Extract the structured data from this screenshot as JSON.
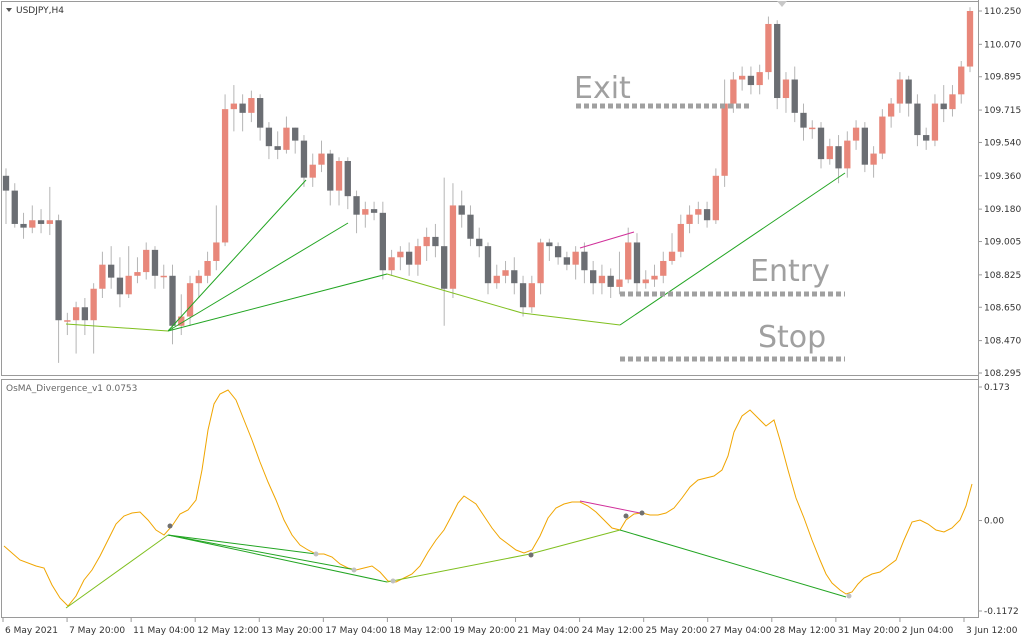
{
  "window": {
    "symbol_label": "USDJPY,H4",
    "indicator_label": "OsMA_Divergence_v1 0.0753"
  },
  "colors": {
    "bull": "#e8877a",
    "bear": "#6b6e73",
    "osma": "#f0a500",
    "trend_green": "#22a522",
    "trend_yellowgreen": "#7fbf1f",
    "divergence_magenta": "#d0309a",
    "annotation_gray": "#a0a0a0",
    "grid_border": "#9a9a9a"
  },
  "annotations": {
    "exit": "Exit",
    "entry": "Entry",
    "stop": "Stop"
  },
  "chart_data": [
    {
      "type": "candlestick",
      "title": "USDJPY,H4",
      "y_axis_ticks": [
        "110.250",
        "110.070",
        "109.895",
        "109.715",
        "109.540",
        "109.360",
        "109.180",
        "109.005",
        "108.825",
        "108.650",
        "108.470",
        "108.295"
      ],
      "ylim": [
        108.27,
        110.28
      ],
      "candles": [
        [
          109.36,
          109.28,
          109.4,
          109.1
        ],
        [
          109.28,
          109.1,
          109.32,
          109.08
        ],
        [
          109.1,
          109.08,
          109.16,
          109.02
        ],
        [
          109.08,
          109.12,
          109.2,
          109.05
        ],
        [
          109.12,
          109.1,
          109.18,
          109.05
        ],
        [
          109.1,
          109.12,
          109.3,
          109.04
        ],
        [
          109.12,
          108.58,
          109.15,
          108.35
        ],
        [
          108.58,
          108.58,
          108.62,
          108.5
        ],
        [
          108.58,
          108.65,
          108.68,
          108.4
        ],
        [
          108.65,
          108.58,
          108.7,
          108.5
        ],
        [
          108.58,
          108.75,
          108.78,
          108.4
        ],
        [
          108.75,
          108.88,
          108.95,
          108.7
        ],
        [
          108.88,
          108.81,
          108.98,
          108.75
        ],
        [
          108.81,
          108.72,
          108.92,
          108.65
        ],
        [
          108.72,
          108.82,
          108.98,
          108.7
        ],
        [
          108.82,
          108.84,
          108.92,
          108.78
        ],
        [
          108.84,
          108.96,
          109.0,
          108.8
        ],
        [
          108.96,
          108.82,
          108.98,
          108.75
        ],
        [
          108.82,
          108.82,
          108.88,
          108.75
        ],
        [
          108.82,
          108.55,
          108.88,
          108.45
        ],
        [
          108.55,
          108.6,
          108.72,
          108.5
        ],
        [
          108.6,
          108.78,
          108.82,
          108.55
        ],
        [
          108.78,
          108.82,
          108.85,
          108.7
        ],
        [
          108.82,
          108.9,
          108.95,
          108.78
        ],
        [
          108.9,
          109.0,
          109.2,
          108.85
        ],
        [
          109.0,
          109.72,
          109.8,
          108.98
        ],
        [
          109.72,
          109.75,
          109.85,
          109.6
        ],
        [
          109.75,
          109.7,
          109.8,
          109.6
        ],
        [
          109.7,
          109.78,
          109.82,
          109.65
        ],
        [
          109.78,
          109.62,
          109.8,
          109.55
        ],
        [
          109.62,
          109.52,
          109.65,
          109.45
        ],
        [
          109.52,
          109.5,
          109.6,
          109.45
        ],
        [
          109.5,
          109.62,
          109.68,
          109.48
        ],
        [
          109.62,
          109.55,
          109.62,
          109.48
        ],
        [
          109.55,
          109.35,
          109.58,
          109.3
        ],
        [
          109.35,
          109.42,
          109.48,
          109.3
        ],
        [
          109.42,
          109.48,
          109.55,
          109.38
        ],
        [
          109.48,
          109.28,
          109.5,
          109.2
        ],
        [
          109.28,
          109.44,
          109.46,
          109.2
        ],
        [
          109.44,
          109.25,
          109.46,
          109.18
        ],
        [
          109.25,
          109.15,
          109.28,
          109.05
        ],
        [
          109.15,
          109.18,
          109.22,
          109.08
        ],
        [
          109.18,
          109.16,
          109.22,
          109.12
        ],
        [
          109.16,
          108.85,
          109.22,
          108.8
        ],
        [
          108.85,
          108.92,
          108.96,
          108.82
        ],
        [
          108.92,
          108.95,
          108.98,
          108.85
        ],
        [
          108.95,
          108.88,
          109.0,
          108.82
        ],
        [
          108.88,
          108.98,
          109.02,
          108.82
        ],
        [
          108.98,
          109.03,
          109.08,
          108.9
        ],
        [
          109.03,
          108.98,
          109.1,
          108.92
        ],
        [
          108.98,
          108.75,
          109.35,
          108.55
        ],
        [
          108.75,
          109.2,
          109.32,
          108.7
        ],
        [
          109.2,
          109.15,
          109.28,
          109.08
        ],
        [
          109.15,
          109.02,
          109.2,
          108.98
        ],
        [
          109.02,
          108.98,
          109.08,
          108.92
        ],
        [
          108.98,
          108.78,
          109.0,
          108.72
        ],
        [
          108.78,
          108.82,
          108.88,
          108.75
        ],
        [
          108.82,
          108.85,
          108.9,
          108.78
        ],
        [
          108.85,
          108.78,
          108.92,
          108.72
        ],
        [
          108.78,
          108.65,
          108.82,
          108.6
        ],
        [
          108.65,
          108.78,
          108.82,
          108.62
        ],
        [
          108.78,
          109.0,
          109.02,
          108.72
        ],
        [
          109.0,
          108.98,
          109.02,
          108.9
        ],
        [
          108.98,
          108.92,
          109.0,
          108.88
        ],
        [
          108.92,
          108.88,
          108.95,
          108.85
        ],
        [
          108.88,
          108.95,
          108.98,
          108.8
        ],
        [
          108.95,
          108.85,
          109.0,
          108.78
        ],
        [
          108.85,
          108.78,
          108.9,
          108.72
        ],
        [
          108.78,
          108.82,
          108.88,
          108.72
        ],
        [
          108.82,
          108.76,
          108.86,
          108.7
        ],
        [
          108.76,
          108.8,
          108.95,
          108.72
        ],
        [
          108.8,
          109.0,
          109.08,
          108.78
        ],
        [
          109.0,
          108.78,
          109.05,
          108.72
        ],
        [
          108.78,
          108.8,
          108.85,
          108.75
        ],
        [
          108.8,
          108.82,
          108.88,
          108.76
        ],
        [
          108.82,
          108.9,
          108.95,
          108.78
        ],
        [
          108.9,
          108.95,
          109.05,
          108.88
        ],
        [
          108.95,
          109.1,
          109.15,
          108.92
        ],
        [
          109.1,
          109.15,
          109.2,
          109.05
        ],
        [
          109.15,
          109.18,
          109.22,
          109.1
        ],
        [
          109.18,
          109.12,
          109.22,
          109.08
        ],
        [
          109.12,
          109.36,
          109.4,
          109.1
        ],
        [
          109.36,
          109.75,
          109.88,
          109.3
        ],
        [
          109.75,
          109.88,
          109.92,
          109.7
        ],
        [
          109.88,
          109.9,
          109.95,
          109.82
        ],
        [
          109.9,
          109.85,
          109.95,
          109.8
        ],
        [
          109.85,
          109.92,
          109.96,
          109.8
        ],
        [
          109.92,
          110.18,
          110.22,
          109.88
        ],
        [
          110.18,
          109.78,
          110.2,
          109.72
        ],
        [
          109.78,
          109.88,
          109.92,
          109.7
        ],
        [
          109.88,
          109.7,
          109.95,
          109.65
        ],
        [
          109.7,
          109.62,
          109.75,
          109.55
        ],
        [
          109.62,
          109.62,
          109.66,
          109.56
        ],
        [
          109.62,
          109.45,
          109.65,
          109.4
        ],
        [
          109.45,
          109.52,
          109.56,
          109.42
        ],
        [
          109.52,
          109.4,
          109.58,
          109.32
        ],
        [
          109.4,
          109.55,
          109.6,
          109.35
        ],
        [
          109.55,
          109.62,
          109.66,
          109.5
        ],
        [
          109.62,
          109.42,
          109.65,
          109.38
        ],
        [
          109.42,
          109.48,
          109.52,
          109.35
        ],
        [
          109.48,
          109.68,
          109.72,
          109.45
        ],
        [
          109.68,
          109.75,
          109.78,
          109.62
        ],
        [
          109.75,
          109.88,
          109.92,
          109.7
        ],
        [
          109.88,
          109.75,
          109.9,
          109.68
        ],
        [
          109.75,
          109.58,
          109.8,
          109.52
        ],
        [
          109.58,
          109.55,
          109.62,
          109.5
        ],
        [
          109.55,
          109.75,
          109.8,
          109.52
        ],
        [
          109.75,
          109.72,
          109.85,
          109.65
        ],
        [
          109.72,
          109.8,
          109.85,
          109.68
        ],
        [
          109.8,
          109.95,
          109.98,
          109.75
        ],
        [
          109.95,
          110.25,
          110.27,
          109.92
        ]
      ]
    },
    {
      "type": "line",
      "title": "OsMA_Divergence_v1 0.0753",
      "y_axis_ticks": [
        "0.173",
        "0.00",
        "-0.1172"
      ],
      "ylim": [
        -0.122,
        0.176
      ]
    }
  ],
  "time_axis": [
    "6 May 2021",
    "7 May 20:00",
    "11 May 04:00",
    "12 May 12:00",
    "13 May 20:00",
    "17 May 04:00",
    "18 May 12:00",
    "19 May 20:00",
    "21 May 04:00",
    "24 May 12:00",
    "25 May 20:00",
    "27 May 04:00",
    "28 May 12:00",
    "31 May 20:00",
    "2 Jun 04:00",
    "3 Jun 12:00"
  ]
}
